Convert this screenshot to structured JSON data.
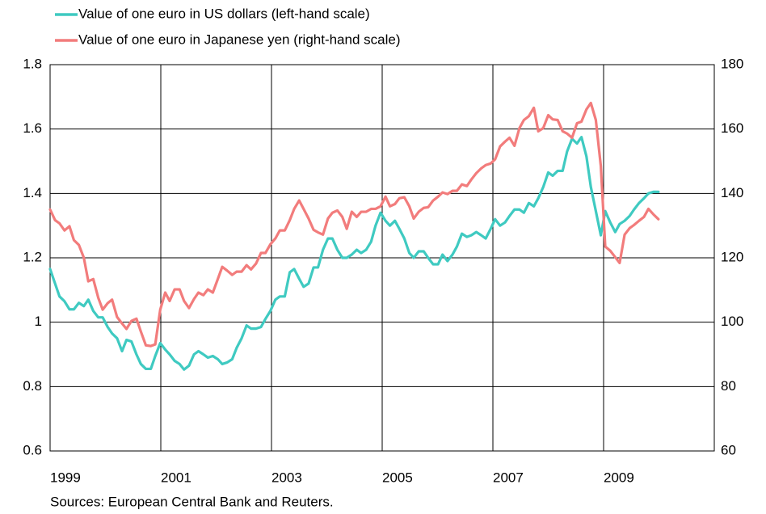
{
  "chart_data": {
    "type": "line",
    "legend": "top-left",
    "grid": true,
    "source": "Sources: European Central Bank and Reuters.",
    "xlim": [
      1999,
      2011
    ],
    "xticks": [
      1999,
      2001,
      2003,
      2005,
      2007,
      2009
    ],
    "ylim": [
      0.6,
      1.8
    ],
    "yticks": [
      0.6,
      0.8,
      1,
      1.2,
      1.4,
      1.6,
      1.8
    ],
    "y2lim": [
      60,
      180
    ],
    "y2ticks": [
      60,
      80,
      100,
      120,
      140,
      160,
      180
    ],
    "x": [
      1999.0,
      1999.09,
      1999.17,
      1999.26,
      1999.35,
      1999.43,
      1999.52,
      1999.61,
      1999.69,
      1999.78,
      1999.87,
      1999.95,
      2000.04,
      2000.12,
      2000.21,
      2000.3,
      2000.38,
      2000.47,
      2000.56,
      2000.64,
      2000.73,
      2000.82,
      2000.9,
      2000.99,
      2001.08,
      2001.16,
      2001.25,
      2001.34,
      2001.42,
      2001.51,
      2001.6,
      2001.68,
      2001.77,
      2001.85,
      2001.94,
      2002.03,
      2002.11,
      2002.2,
      2002.29,
      2002.37,
      2002.46,
      2002.55,
      2002.63,
      2002.72,
      2002.81,
      2002.89,
      2002.98,
      2003.07,
      2003.15,
      2003.24,
      2003.33,
      2003.41,
      2003.5,
      2003.58,
      2003.67,
      2003.76,
      2003.84,
      2003.93,
      2004.02,
      2004.1,
      2004.19,
      2004.28,
      2004.36,
      2004.45,
      2004.54,
      2004.62,
      2004.71,
      2004.8,
      2004.88,
      2004.97,
      2005.06,
      2005.14,
      2005.23,
      2005.31,
      2005.4,
      2005.49,
      2005.57,
      2005.66,
      2005.75,
      2005.83,
      2005.92,
      2006.01,
      2006.09,
      2006.18,
      2006.27,
      2006.35,
      2006.44,
      2006.53,
      2006.61,
      2006.7,
      2006.79,
      2006.87,
      2006.96,
      2007.04,
      2007.13,
      2007.22,
      2007.3,
      2007.39,
      2007.48,
      2007.56,
      2007.65,
      2007.74,
      2007.82,
      2007.91,
      2008.0,
      2008.08,
      2008.17,
      2008.26,
      2008.34,
      2008.43,
      2008.52,
      2008.6,
      2008.69,
      2008.77,
      2008.86,
      2008.95,
      2009.03,
      2009.12,
      2009.21,
      2009.29,
      2009.38,
      2009.47,
      2009.55,
      2009.64,
      2009.73,
      2009.81,
      2009.9,
      2009.99
    ],
    "series": [
      {
        "name": "Value of one euro in US dollars (left-hand scale)",
        "color": "#3fcac1",
        "axis": "y",
        "values": [
          1.165,
          1.12,
          1.08,
          1.065,
          1.04,
          1.04,
          1.06,
          1.05,
          1.07,
          1.035,
          1.015,
          1.015,
          0.985,
          0.965,
          0.95,
          0.91,
          0.945,
          0.94,
          0.9,
          0.87,
          0.855,
          0.855,
          0.895,
          0.935,
          0.915,
          0.9,
          0.88,
          0.87,
          0.853,
          0.865,
          0.9,
          0.91,
          0.9,
          0.89,
          0.895,
          0.885,
          0.87,
          0.875,
          0.885,
          0.92,
          0.95,
          0.99,
          0.98,
          0.98,
          0.985,
          1.01,
          1.035,
          1.07,
          1.08,
          1.08,
          1.155,
          1.165,
          1.135,
          1.11,
          1.12,
          1.17,
          1.17,
          1.225,
          1.26,
          1.26,
          1.225,
          1.2,
          1.2,
          1.21,
          1.225,
          1.215,
          1.225,
          1.25,
          1.3,
          1.34,
          1.315,
          1.3,
          1.315,
          1.29,
          1.26,
          1.215,
          1.2,
          1.22,
          1.22,
          1.2,
          1.18,
          1.18,
          1.21,
          1.19,
          1.21,
          1.235,
          1.275,
          1.265,
          1.27,
          1.28,
          1.27,
          1.26,
          1.29,
          1.32,
          1.3,
          1.31,
          1.33,
          1.35,
          1.35,
          1.34,
          1.37,
          1.36,
          1.385,
          1.42,
          1.465,
          1.455,
          1.47,
          1.47,
          1.53,
          1.57,
          1.555,
          1.575,
          1.515,
          1.42,
          1.345,
          1.27,
          1.345,
          1.31,
          1.28,
          1.305,
          1.315,
          1.33,
          1.35,
          1.37,
          1.385,
          1.4,
          1.405,
          1.405
        ]
      },
      {
        "name": "Value of one euro in Japanese yen (right-hand scale)",
        "color": "#f27c7c",
        "axis": "y2",
        "values": [
          135,
          131.7,
          130.7,
          128.5,
          129.8,
          125.5,
          124,
          120,
          112.7,
          113.4,
          107.6,
          103.9,
          105.9,
          107,
          101.6,
          99.6,
          97.9,
          100.4,
          101.1,
          97.1,
          92.8,
          92.6,
          93.1,
          103.9,
          109.2,
          106.6,
          110.2,
          110.2,
          106.6,
          104.4,
          107.2,
          109.2,
          108.4,
          110.2,
          109.2,
          113.4,
          117.2,
          116,
          114.7,
          115.7,
          115.7,
          117.7,
          116.4,
          118.2,
          121.5,
          121.5,
          124.2,
          126,
          128.5,
          128.5,
          131.7,
          135.2,
          137.8,
          135.2,
          132.2,
          128.7,
          127.9,
          127.2,
          132.2,
          134,
          134.7,
          132.7,
          129,
          134.3,
          132.7,
          134.3,
          134.3,
          135.2,
          135.2,
          136,
          139,
          136,
          136.7,
          138.5,
          138.8,
          136,
          132.2,
          134.3,
          135.5,
          135.7,
          137.8,
          139,
          140.3,
          139.8,
          140.8,
          140.8,
          142.8,
          142.3,
          144.3,
          146.3,
          147.8,
          148.8,
          149.3,
          150.6,
          154.6,
          156.1,
          157.3,
          154.8,
          160.3,
          162.8,
          164,
          166.6,
          159.3,
          160.3,
          164.3,
          163,
          162.8,
          159.3,
          158.6,
          157.3,
          161.8,
          162.3,
          166.1,
          168.1,
          162.8,
          148.5,
          123.5,
          122.2,
          120.2,
          118.4,
          127.2,
          129.2,
          130.2,
          131.5,
          132.7,
          135.2,
          133.5,
          132
        ]
      }
    ]
  }
}
